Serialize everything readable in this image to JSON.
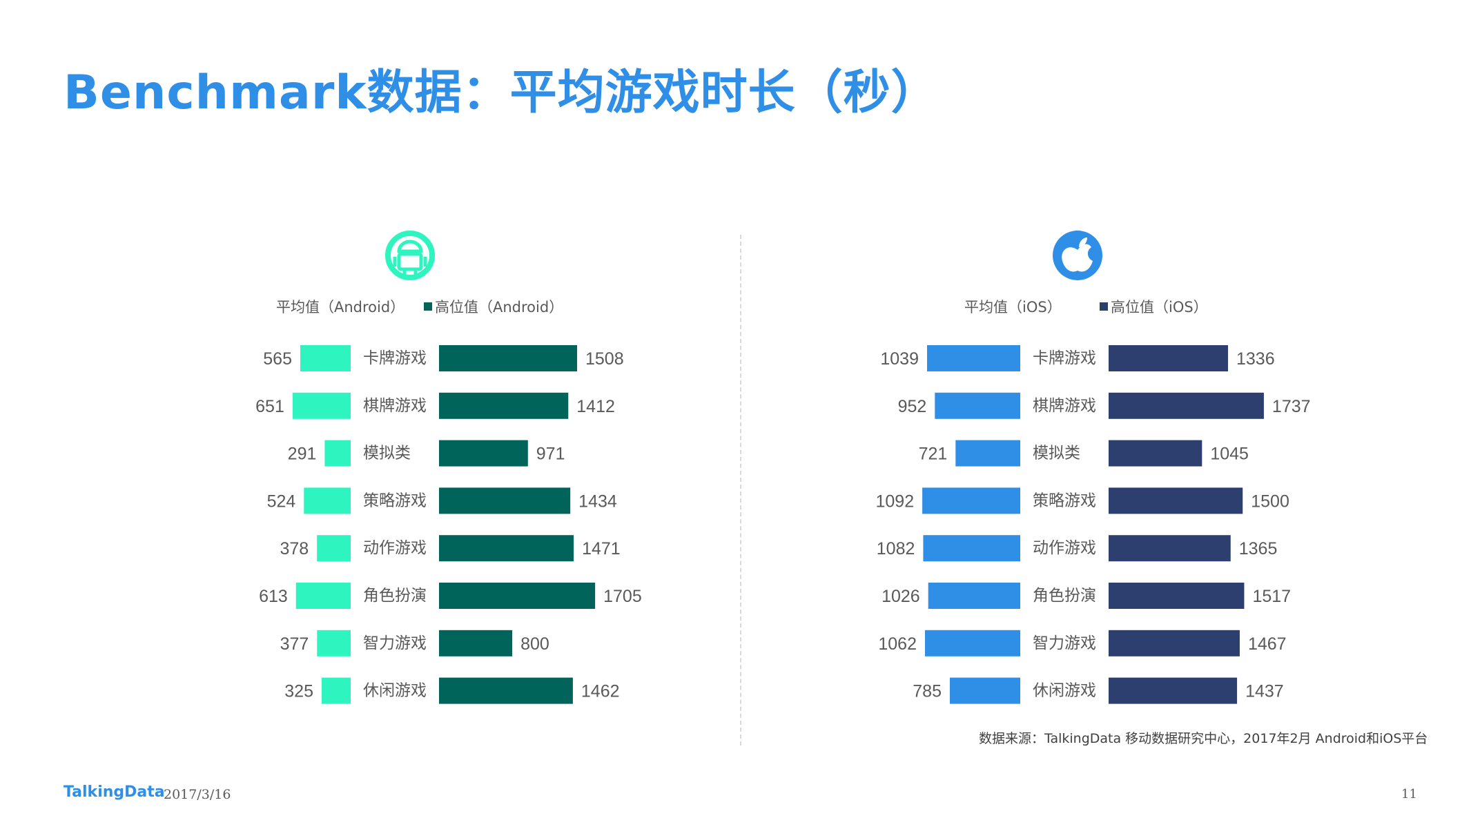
{
  "title": "Benchmark数据：平均游戏时长（秒）",
  "source": "数据来源：TalkingData 移动数据研究中心，2017年2月 Android和iOS平台",
  "footer": {
    "brand": "TalkingData",
    "date": "2017/3/16",
    "page": "11"
  },
  "chart_data": [
    {
      "type": "bar",
      "platform_icon": "android-icon",
      "categories": [
        "卡牌游戏",
        "棋牌游戏",
        "模拟类",
        "策略游戏",
        "动作游戏",
        "角色扮演",
        "智力游戏",
        "休闲游戏"
      ],
      "series": [
        {
          "name": "平均值（Android）",
          "color": "#2ef5c0",
          "values": [
            565,
            651,
            291,
            524,
            378,
            613,
            377,
            325
          ]
        },
        {
          "name": "高位值（Android）",
          "color": "#00645a",
          "values": [
            1508,
            1412,
            971,
            1434,
            1471,
            1705,
            800,
            1462
          ]
        }
      ],
      "icon_color": "#2ef5c0"
    },
    {
      "type": "bar",
      "platform_icon": "apple-icon",
      "categories": [
        "卡牌游戏",
        "棋牌游戏",
        "模拟类",
        "策略游戏",
        "动作游戏",
        "角色扮演",
        "智力游戏",
        "休闲游戏"
      ],
      "series": [
        {
          "name": "平均值（iOS）",
          "color": "#2f8ee6",
          "values": [
            1039,
            952,
            721,
            1092,
            1082,
            1026,
            1062,
            785
          ]
        },
        {
          "name": "高位值（iOS）",
          "color": "#2d3f6e",
          "values": [
            1336,
            1737,
            1045,
            1500,
            1365,
            1517,
            1467,
            1437
          ]
        }
      ],
      "icon_color": "#2f8ee6"
    }
  ]
}
